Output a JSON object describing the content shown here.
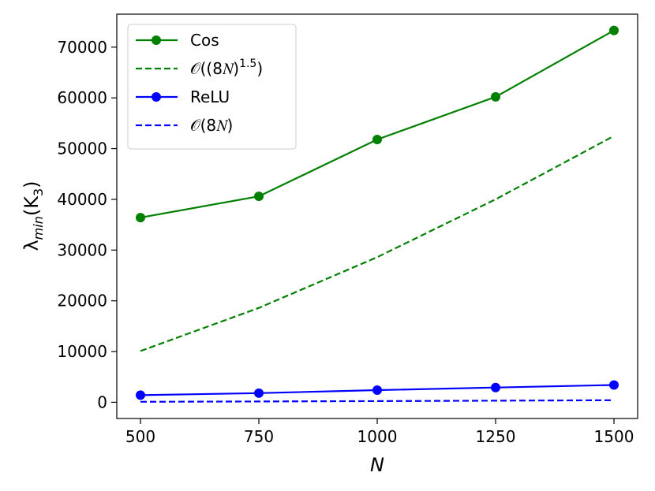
{
  "chart_data": {
    "type": "line",
    "xlabel": "N",
    "ylabel_base": "λ",
    "ylabel_sub": "min",
    "ylabel_paren_open": "(K",
    "ylabel_paren_sub": "3",
    "ylabel_paren_close": ")",
    "xlim": [
      450,
      1550
    ],
    "ylim": [
      -3200,
      76500
    ],
    "x_ticks": [
      500,
      750,
      1000,
      1250,
      1500
    ],
    "y_ticks": [
      0,
      10000,
      20000,
      30000,
      40000,
      50000,
      60000,
      70000
    ],
    "grid": false,
    "legend_position": "top-left",
    "series": [
      {
        "name": "Cos",
        "legend_text": "Cos",
        "color": "#008000",
        "style": "solid",
        "marker": "circle",
        "x": [
          500,
          750,
          1000,
          1250,
          1500
        ],
        "y": [
          36400,
          40600,
          51800,
          60200,
          73300
        ]
      },
      {
        "name": "O((8N)^1.5)",
        "legend_text": "𝒪((8𝑁)",
        "legend_sup": "1.5",
        "legend_tail": ")",
        "color": "#008000",
        "style": "dashed",
        "marker": "none",
        "x": [
          500,
          750,
          1000,
          1250,
          1500
        ],
        "y": [
          10100,
          18600,
          28600,
          40000,
          52500
        ]
      },
      {
        "name": "ReLU",
        "legend_text": "ReLU",
        "color": "#0000ff",
        "style": "solid",
        "marker": "circle",
        "x": [
          500,
          750,
          1000,
          1250,
          1500
        ],
        "y": [
          1400,
          1800,
          2400,
          2900,
          3400
        ]
      },
      {
        "name": "O(8N)",
        "legend_text": "𝒪(8𝑁)",
        "color": "#0000ff",
        "style": "dashed",
        "marker": "none",
        "x": [
          500,
          750,
          1000,
          1250,
          1500
        ],
        "y": [
          100,
          160,
          230,
          310,
          400
        ]
      }
    ]
  }
}
